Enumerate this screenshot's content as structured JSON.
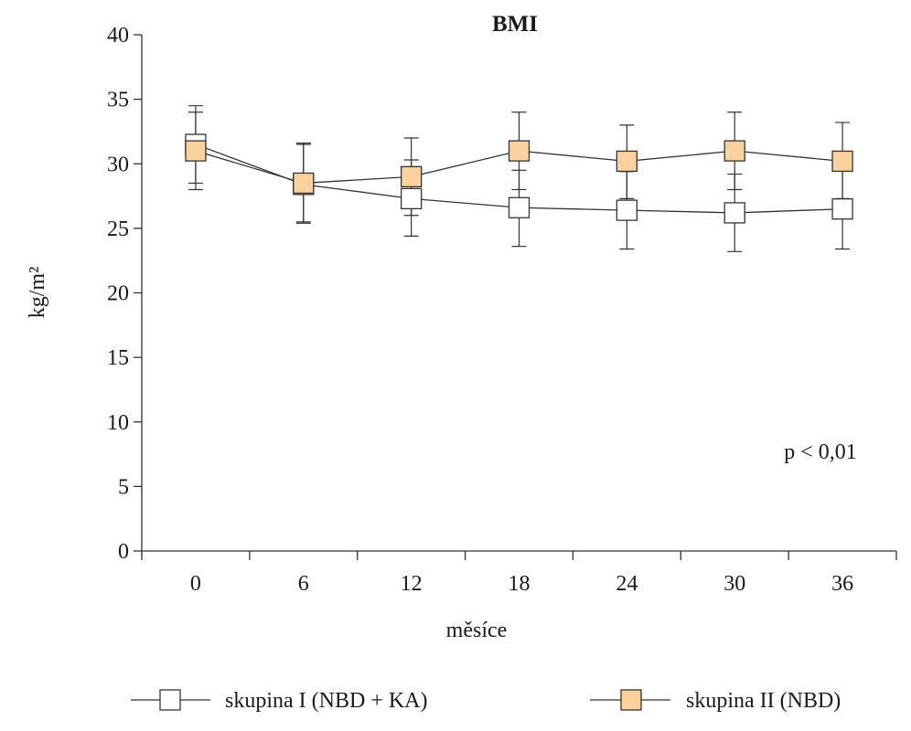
{
  "chart_data": {
    "type": "line",
    "title": "BMI",
    "xlabel": "měsíce",
    "ylabel": "kg/m²",
    "x": [
      0,
      6,
      12,
      18,
      24,
      30,
      36
    ],
    "x_ticks": [
      "0",
      "6",
      "12",
      "18",
      "24",
      "30",
      "36"
    ],
    "xlim": [
      -3,
      39
    ],
    "ylim": [
      0,
      40
    ],
    "y_ticks": [
      "0",
      "5",
      "10",
      "15",
      "20",
      "25",
      "30",
      "35",
      "40"
    ],
    "grid": false,
    "legend_position": "bottom",
    "annotation": "p < 0,01",
    "series": [
      {
        "name": "skupina I (NBD + KA)",
        "marker_fill": "#ffffff",
        "values": [
          31.5,
          28.4,
          27.3,
          26.6,
          26.4,
          26.2,
          26.5
        ],
        "error_low": [
          28.0,
          25.5,
          24.4,
          23.6,
          23.4,
          23.2,
          23.4
        ],
        "error_high": [
          34.5,
          31.6,
          30.3,
          29.5,
          29.4,
          29.2,
          29.5
        ]
      },
      {
        "name": "skupina II (NBD)",
        "marker_fill": "#fbd29d",
        "values": [
          31.0,
          28.5,
          29.0,
          31.0,
          30.2,
          31.0,
          30.2
        ],
        "error_low": [
          28.5,
          25.4,
          26.0,
          28.0,
          27.3,
          28.0,
          27.3
        ],
        "error_high": [
          34.0,
          31.5,
          32.0,
          34.0,
          33.0,
          34.0,
          33.2
        ]
      }
    ]
  }
}
